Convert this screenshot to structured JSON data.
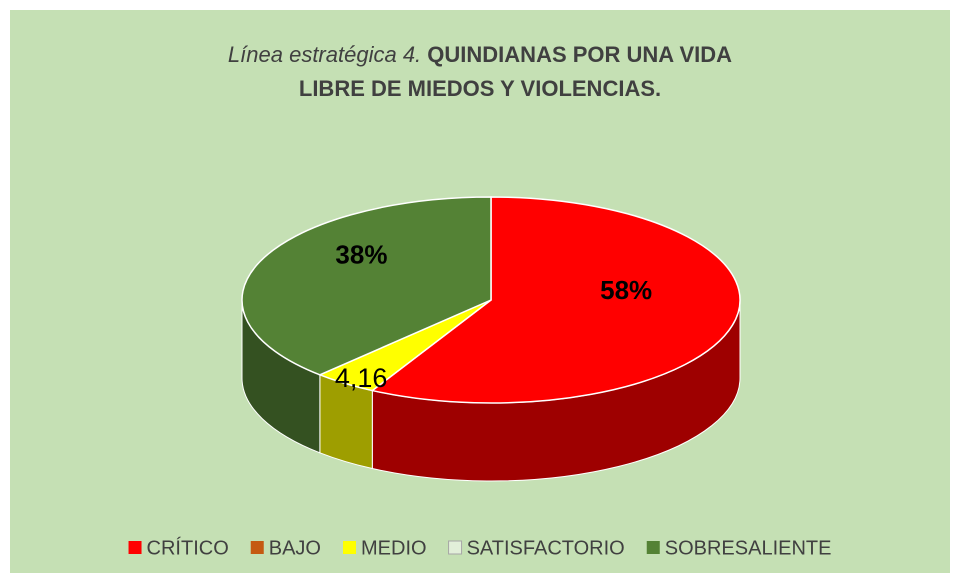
{
  "chart_data": {
    "type": "pie3d",
    "title": [
      "Línea estratégica 4.",
      "QUINDIANAS POR UNA VIDA LIBRE DE MIEDOS Y VIOLENCIAS."
    ],
    "categories": [
      "CRÍTICO",
      "BAJO",
      "MEDIO",
      "SATISFACTORIO",
      "SOBRESALIENTE"
    ],
    "values": [
      58,
      0,
      4.16,
      0,
      38
    ],
    "value_labels": [
      "58%",
      null,
      "4,16",
      null,
      "38%"
    ],
    "colors": [
      "#ff0000",
      "#c55a11",
      "#ffff00",
      "#e2efd9",
      "#548235"
    ],
    "legend": "bottom"
  }
}
